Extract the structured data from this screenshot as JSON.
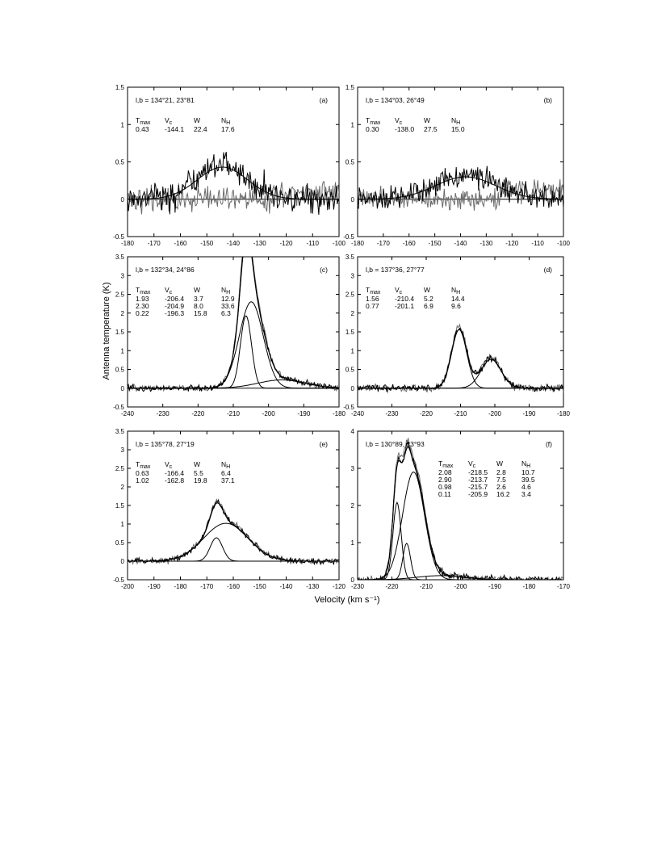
{
  "figure": {
    "ylabel": "Antenna temperature (K)",
    "xlabel": "Velocity (km s⁻¹)"
  },
  "chart_data": [
    {
      "panel": "(a)",
      "type": "line",
      "coords": "l,b = 134°21, 23°81",
      "xlim": [
        -180,
        -100
      ],
      "ylim": [
        -0.5,
        1.5
      ],
      "xticks": [
        -180,
        -170,
        -160,
        -150,
        -140,
        -130,
        -120,
        -110,
        -100
      ],
      "yticks": [
        -0.5,
        0,
        0.5,
        1,
        1.5
      ],
      "table_headers": [
        "Tmax",
        "Vc",
        "W",
        "NH"
      ],
      "table_rows": [
        [
          "0.43",
          "-144.1",
          "22.4",
          "17.6"
        ]
      ],
      "noise": 0.12,
      "extended": true
    },
    {
      "panel": "(b)",
      "type": "line",
      "coords": "l,b = 134°03, 26°49",
      "xlim": [
        -180,
        -100
      ],
      "ylim": [
        -0.5,
        1.5
      ],
      "xticks": [
        -180,
        -170,
        -160,
        -150,
        -140,
        -130,
        -120,
        -110,
        -100
      ],
      "yticks": [
        -0.5,
        0,
        0.5,
        1,
        1.5
      ],
      "table_headers": [
        "Tmax",
        "Vc",
        "W",
        "NH"
      ],
      "table_rows": [
        [
          "0.30",
          "-138.0",
          "27.5",
          "15.0"
        ]
      ],
      "noise": 0.1,
      "extended": true
    },
    {
      "panel": "(c)",
      "type": "line",
      "coords": "l,b = 132°34, 24°86",
      "xlim": [
        -240,
        -180
      ],
      "ylim": [
        -0.5,
        3.5
      ],
      "xticks": [
        -240,
        -230,
        -220,
        -210,
        -200,
        -190,
        -180
      ],
      "yticks": [
        -0.5,
        0,
        0.5,
        1,
        1.5,
        2,
        2.5,
        3,
        3.5
      ],
      "table_headers": [
        "Tmax",
        "Vc",
        "W",
        "NH"
      ],
      "table_rows": [
        [
          "1.93",
          "-206.4",
          "3.7",
          "12.9"
        ],
        [
          "2.30",
          "-204.9",
          "8.0",
          "33.6"
        ],
        [
          "0.22",
          "-196.3",
          "15.8",
          "6.3"
        ]
      ],
      "noise": 0.06,
      "extended": false
    },
    {
      "panel": "(d)",
      "type": "line",
      "coords": "l,b = 137°36, 27°77",
      "xlim": [
        -240,
        -180
      ],
      "ylim": [
        -0.5,
        3.5
      ],
      "xticks": [
        -240,
        -230,
        -220,
        -210,
        -200,
        -190,
        -180
      ],
      "yticks": [
        -0.5,
        0,
        0.5,
        1,
        1.5,
        2,
        2.5,
        3,
        3.5
      ],
      "table_headers": [
        "Tmax",
        "Vc",
        "W",
        "NH"
      ],
      "table_rows": [
        [
          "1.56",
          "-210.4",
          "5.2",
          "14.4"
        ],
        [
          "0.77",
          "-201.1",
          "6.9",
          "9.6"
        ]
      ],
      "noise": 0.07,
      "extended": false
    },
    {
      "panel": "(e)",
      "type": "line",
      "coords": "l,b = 135°78, 27°19",
      "xlim": [
        -200,
        -120
      ],
      "ylim": [
        -0.5,
        3.5
      ],
      "xticks": [
        -200,
        -190,
        -180,
        -170,
        -160,
        -150,
        -140,
        -130,
        -120
      ],
      "yticks": [
        -0.5,
        0,
        0.5,
        1,
        1.5,
        2,
        2.5,
        3,
        3.5
      ],
      "table_headers": [
        "Tmax",
        "Vc",
        "W",
        "NH"
      ],
      "table_rows": [
        [
          "0.63",
          "-166.4",
          "5.5",
          "6.4"
        ],
        [
          "1.02",
          "-162.8",
          "19.8",
          "37.1"
        ]
      ],
      "noise": 0.06,
      "extended": false
    },
    {
      "panel": "(f)",
      "type": "line",
      "coords": "l,b = 130°89, 23°93",
      "xlim": [
        -230,
        -170
      ],
      "ylim": [
        0,
        4
      ],
      "xticks": [
        -230,
        -220,
        -210,
        -200,
        -190,
        -180,
        -170
      ],
      "yticks": [
        0,
        1,
        2,
        3,
        4
      ],
      "table_headers": [
        "Tmax",
        "Vc",
        "W",
        "NH"
      ],
      "table_rows": [
        [
          "2.08",
          "-218.5",
          "2.8",
          "10.7"
        ],
        [
          "2.90",
          "-213.7",
          "7.5",
          "39.5"
        ],
        [
          "0.98",
          "-215.7",
          "2.6",
          "4.6"
        ],
        [
          "0.11",
          "-205.9",
          "16.2",
          "3.4"
        ]
      ],
      "noise": 0.07,
      "extended": false
    }
  ]
}
